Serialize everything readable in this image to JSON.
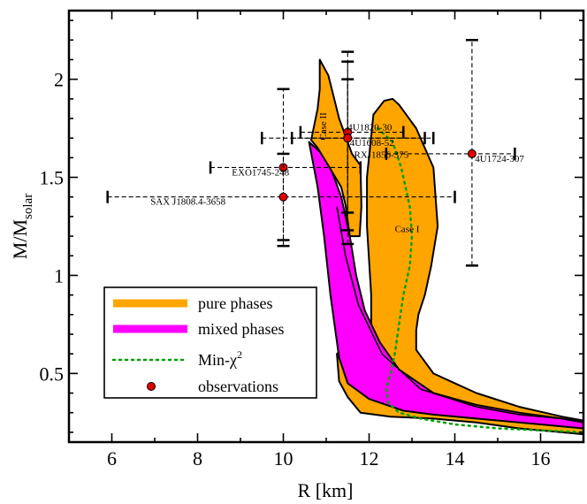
{
  "chart_data": {
    "type": "scatter",
    "title": "",
    "xlabel": "R [km]",
    "ylabel_main": "M/M",
    "ylabel_sub": "solar",
    "xlim": [
      5,
      17
    ],
    "ylim": [
      0.15,
      2.35
    ],
    "x_ticks": [
      6,
      8,
      10,
      12,
      14,
      16
    ],
    "y_ticks": [
      0.5,
      1,
      1.5,
      2
    ],
    "y_tick_labels": [
      "0.5",
      "1",
      "1.5",
      "2"
    ],
    "colors": {
      "pure": "#FFA500",
      "mixed": "#FF00FF",
      "minchi": "#00A000",
      "obs": "#E00000"
    },
    "regions": [
      {
        "name": "pure phases",
        "label": "Case I",
        "label_at": [
          12.6,
          1.22
        ],
        "outline": [
          [
            12.55,
            1.9
          ],
          [
            12.7,
            1.87
          ],
          [
            13.1,
            1.75
          ],
          [
            13.5,
            1.55
          ],
          [
            13.6,
            1.25
          ],
          [
            13.45,
            1.05
          ],
          [
            13.3,
            0.9
          ],
          [
            13.15,
            0.8
          ],
          [
            13.1,
            0.72
          ],
          [
            13.1,
            0.62
          ],
          [
            13.5,
            0.5
          ],
          [
            14.5,
            0.4
          ],
          [
            15.5,
            0.33
          ],
          [
            16.5,
            0.28
          ],
          [
            17,
            0.26
          ],
          [
            17,
            0.19
          ],
          [
            16.5,
            0.2
          ],
          [
            15.5,
            0.22
          ],
          [
            14.5,
            0.25
          ],
          [
            13.5,
            0.27
          ],
          [
            12.5,
            0.28
          ],
          [
            11.8,
            0.3
          ],
          [
            11.5,
            0.38
          ],
          [
            11.3,
            0.46
          ],
          [
            11.25,
            0.6
          ],
          [
            11.5,
            0.65
          ],
          [
            11.85,
            0.67
          ],
          [
            12.05,
            0.71
          ],
          [
            12.05,
            0.9
          ],
          [
            11.95,
            1.25
          ],
          [
            11.95,
            1.5
          ],
          [
            12.1,
            1.82
          ],
          [
            12.35,
            1.89
          ]
        ]
      },
      {
        "name": "mixed phases",
        "label": "",
        "outline": [
          [
            10.6,
            1.68
          ],
          [
            10.9,
            1.62
          ],
          [
            11.1,
            1.55
          ],
          [
            11.35,
            1.4
          ],
          [
            11.55,
            1.2
          ],
          [
            11.7,
            1.0
          ],
          [
            11.9,
            0.82
          ],
          [
            12.25,
            0.66
          ],
          [
            12.7,
            0.52
          ],
          [
            13.5,
            0.4
          ],
          [
            14.5,
            0.34
          ],
          [
            15.5,
            0.3
          ],
          [
            16.5,
            0.27
          ],
          [
            17,
            0.25
          ],
          [
            17,
            0.22
          ],
          [
            16.5,
            0.23
          ],
          [
            15.5,
            0.25
          ],
          [
            14.5,
            0.27
          ],
          [
            13.5,
            0.29
          ],
          [
            12.8,
            0.31
          ],
          [
            12.0,
            0.37
          ],
          [
            11.5,
            0.45
          ],
          [
            11.3,
            0.58
          ],
          [
            11.1,
            0.9
          ],
          [
            10.95,
            1.2
          ],
          [
            10.8,
            1.45
          ]
        ]
      },
      {
        "name": "pure phases",
        "label": "Case II",
        "label_at": [
          11.0,
          1.76
        ],
        "outline": [
          [
            10.85,
            2.1
          ],
          [
            11.05,
            2.02
          ],
          [
            11.3,
            1.8
          ],
          [
            11.6,
            1.62
          ],
          [
            11.8,
            1.56
          ],
          [
            11.82,
            1.35
          ],
          [
            11.78,
            1.2
          ],
          [
            11.55,
            1.2
          ],
          [
            11.45,
            1.36
          ],
          [
            11.35,
            1.45
          ],
          [
            11.05,
            1.56
          ],
          [
            10.8,
            1.65
          ],
          [
            10.65,
            1.69
          ],
          [
            10.8,
            1.85
          ],
          [
            10.85,
            1.95
          ]
        ]
      }
    ],
    "min_chi2": {
      "name": "Min-χ",
      "name_sup": "2",
      "x": [
        12.2,
        12.55,
        12.75,
        12.95,
        13.0,
        12.95,
        12.8,
        12.7,
        12.6,
        12.5,
        12.4,
        12.45,
        12.7,
        13.2,
        14.0,
        15.0,
        16.0,
        17.0
      ],
      "y": [
        1.75,
        1.68,
        1.55,
        1.35,
        1.2,
        1.05,
        0.9,
        0.75,
        0.6,
        0.5,
        0.42,
        0.35,
        0.3,
        0.27,
        0.24,
        0.22,
        0.21,
        0.2
      ]
    },
    "observations": [
      {
        "name": "4U1820-30",
        "x": 11.5,
        "y": 1.73,
        "xerr": [
          10.4,
          12.8
        ],
        "yerr": [
          1.32,
          2.14
        ],
        "label_at": [
          11.5,
          1.74
        ]
      },
      {
        "name": "4U1608-52",
        "x": 11.5,
        "y": 1.7,
        "xerr": [
          9.5,
          13.3
        ],
        "yerr": [
          1.16,
          2.09
        ],
        "label_at": [
          11.55,
          1.66
        ]
      },
      {
        "name": "RXJ1856-375",
        "x": 11.5,
        "y": 1.7,
        "xerr": [
          10.2,
          13.5
        ],
        "yerr": [
          1.23,
          2.0
        ],
        "label_at": [
          11.65,
          1.6
        ]
      },
      {
        "name": "4U1724-307",
        "x": 14.4,
        "y": 1.62,
        "xerr": [
          12.4,
          15.4
        ],
        "yerr": [
          1.05,
          2.2
        ],
        "label_at": [
          14.47,
          1.58
        ]
      },
      {
        "name": "EXO1745-248",
        "x": 10.0,
        "y": 1.55,
        "xerr": [
          8.3,
          11.8
        ],
        "yerr": [
          1.18,
          1.95
        ],
        "label_at": [
          8.8,
          1.51
        ]
      },
      {
        "name": "SAX J1808.4-3658",
        "x": 10.0,
        "y": 1.4,
        "xerr": [
          5.9,
          14.0
        ],
        "yerr": [
          1.15,
          1.62
        ],
        "label_at": [
          6.9,
          1.36
        ]
      }
    ],
    "legend": {
      "position": "bottom-left",
      "entries": [
        "pure phases",
        "mixed phases",
        "Min-χ",
        "observations"
      ],
      "entry_sup": [
        "",
        "",
        "2",
        ""
      ]
    }
  }
}
